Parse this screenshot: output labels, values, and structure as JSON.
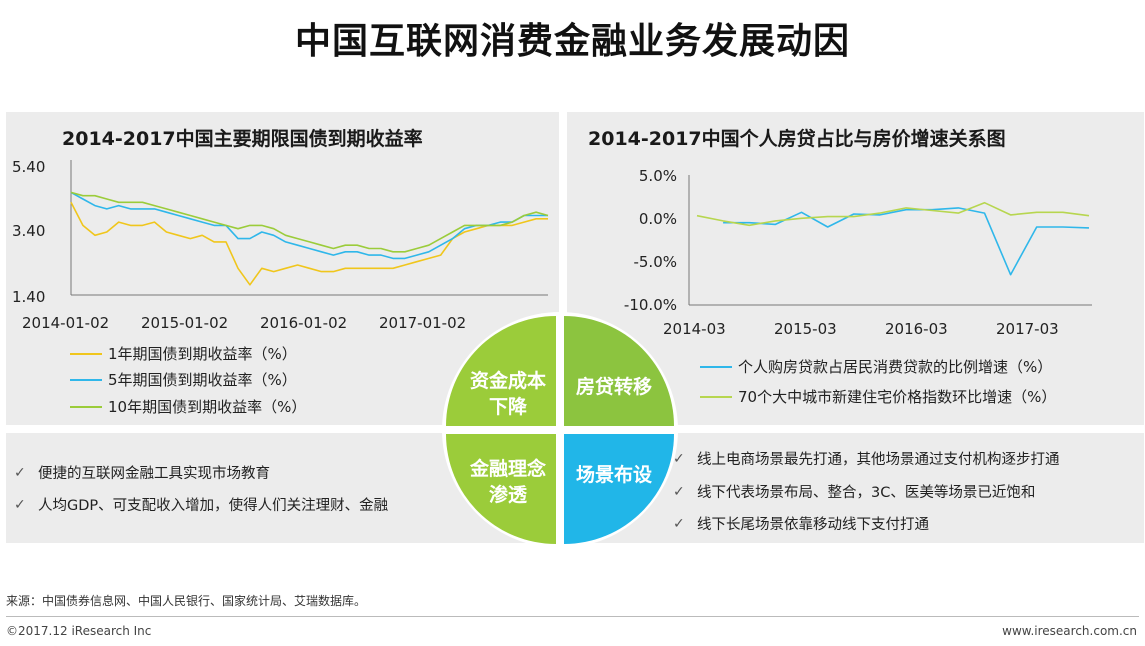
{
  "title": "中国互联网消费金融业务发展动因",
  "colors": {
    "yellow": "#f0c61c",
    "blue": "#2fb7ea",
    "green": "#9bcc3a",
    "lime": "#8cc43f",
    "cyan": "#21b6e8",
    "panel": "#ececec"
  },
  "chart_data": [
    {
      "type": "line",
      "title": "2014-2017中国主要期限国债到期收益率",
      "yticks": [
        "5.40",
        "3.40",
        "1.40"
      ],
      "ylim": [
        1.4,
        5.4
      ],
      "xticks": [
        "2014-01-02",
        "2015-01-02",
        "2016-01-02",
        "2017-01-02"
      ],
      "x": [
        2014.0,
        2014.1,
        2014.2,
        2014.3,
        2014.4,
        2014.5,
        2014.6,
        2014.7,
        2014.8,
        2014.9,
        2015.0,
        2015.1,
        2015.2,
        2015.3,
        2015.4,
        2015.5,
        2015.6,
        2015.7,
        2015.8,
        2015.9,
        2016.0,
        2016.1,
        2016.2,
        2016.3,
        2016.4,
        2016.5,
        2016.6,
        2016.7,
        2016.8,
        2016.9,
        2017.0,
        2017.1,
        2017.2,
        2017.3,
        2017.4,
        2017.5,
        2017.6,
        2017.7,
        2017.8,
        2017.9,
        2018.0
      ],
      "series": [
        {
          "name": "1年期国债到期收益率（%）",
          "color": "#f0c61c",
          "values": [
            4.3,
            3.6,
            3.3,
            3.4,
            3.7,
            3.6,
            3.6,
            3.7,
            3.4,
            3.3,
            3.2,
            3.3,
            3.1,
            3.1,
            2.3,
            1.8,
            2.3,
            2.2,
            2.3,
            2.4,
            2.3,
            2.2,
            2.2,
            2.3,
            2.3,
            2.3,
            2.3,
            2.3,
            2.4,
            2.5,
            2.6,
            2.7,
            3.2,
            3.4,
            3.5,
            3.6,
            3.6,
            3.6,
            3.7,
            3.8,
            3.8
          ]
        },
        {
          "name": "5年期国债到期收益率（%）",
          "color": "#2fb7ea",
          "values": [
            4.6,
            4.4,
            4.2,
            4.1,
            4.2,
            4.1,
            4.1,
            4.1,
            4.0,
            3.9,
            3.8,
            3.7,
            3.6,
            3.6,
            3.2,
            3.2,
            3.4,
            3.3,
            3.1,
            3.0,
            2.9,
            2.8,
            2.7,
            2.8,
            2.8,
            2.7,
            2.7,
            2.6,
            2.6,
            2.7,
            2.8,
            3.0,
            3.2,
            3.5,
            3.6,
            3.6,
            3.7,
            3.7,
            3.9,
            3.9,
            3.9
          ]
        },
        {
          "name": "10年期国债到期收益率（%）",
          "color": "#9bcc3a",
          "values": [
            4.6,
            4.5,
            4.5,
            4.4,
            4.3,
            4.3,
            4.3,
            4.2,
            4.1,
            4.0,
            3.9,
            3.8,
            3.7,
            3.6,
            3.5,
            3.6,
            3.6,
            3.5,
            3.3,
            3.2,
            3.1,
            3.0,
            2.9,
            3.0,
            3.0,
            2.9,
            2.9,
            2.8,
            2.8,
            2.9,
            3.0,
            3.2,
            3.4,
            3.6,
            3.6,
            3.6,
            3.6,
            3.7,
            3.9,
            4.0,
            3.9
          ]
        }
      ]
    },
    {
      "type": "line",
      "title": "2014-2017中国个人房贷占比与房价增速关系图",
      "yticks": [
        "5.0%",
        "0.0%",
        "-5.0%",
        "-10.0%"
      ],
      "ylim": [
        -10,
        5
      ],
      "xticks": [
        "2014-03",
        "2015-03",
        "2016-03",
        "2017-03"
      ],
      "x": [
        2014.25,
        2014.5,
        2014.75,
        2015.0,
        2015.25,
        2015.5,
        2015.75,
        2016.0,
        2016.25,
        2016.5,
        2016.75,
        2017.0,
        2017.25,
        2017.5,
        2017.75,
        2018.0
      ],
      "series": [
        {
          "name": "个人购房贷款占居民消费贷款的比例增速（%）",
          "color": "#2fb7ea",
          "values": [
            null,
            -0.5,
            -0.5,
            -0.7,
            0.7,
            -1.0,
            0.5,
            0.4,
            1.0,
            1.0,
            1.2,
            0.6,
            -6.5,
            -1.0,
            -1.0,
            -1.1
          ]
        },
        {
          "name": "70个大中城市新建住宅价格指数环比增速（%）",
          "color": "#b7d64f",
          "values": [
            0.3,
            -0.3,
            -0.8,
            -0.3,
            0.0,
            0.2,
            0.2,
            0.6,
            1.2,
            0.9,
            0.6,
            1.8,
            0.4,
            0.7,
            0.7,
            0.3
          ]
        }
      ]
    }
  ],
  "quadrants": {
    "top_left": "资金成本\n下降",
    "top_right": "房贷转移",
    "bottom_left": "金融理念\n渗透",
    "bottom_right": "场景布设"
  },
  "bullets_left": [
    "便捷的互联网金融工具实现市场教育",
    "人均GDP、可支配收入增加，使得人们关注理财、金融"
  ],
  "bullets_right": [
    "线上电商场景最先打通，其他场景通过支付机构逐步打通",
    "线下代表场景布局、整合，3C、医美等场景已近饱和",
    "线下长尾场景依靠移动线下支付打通"
  ],
  "check_icon": "✓",
  "source": "来源：中国债券信息网、中国人民银行、国家统计局、艾瑞数据库。",
  "footer": {
    "copyright": "©2017.12 iResearch Inc",
    "website": "www.iresearch.com.cn"
  }
}
